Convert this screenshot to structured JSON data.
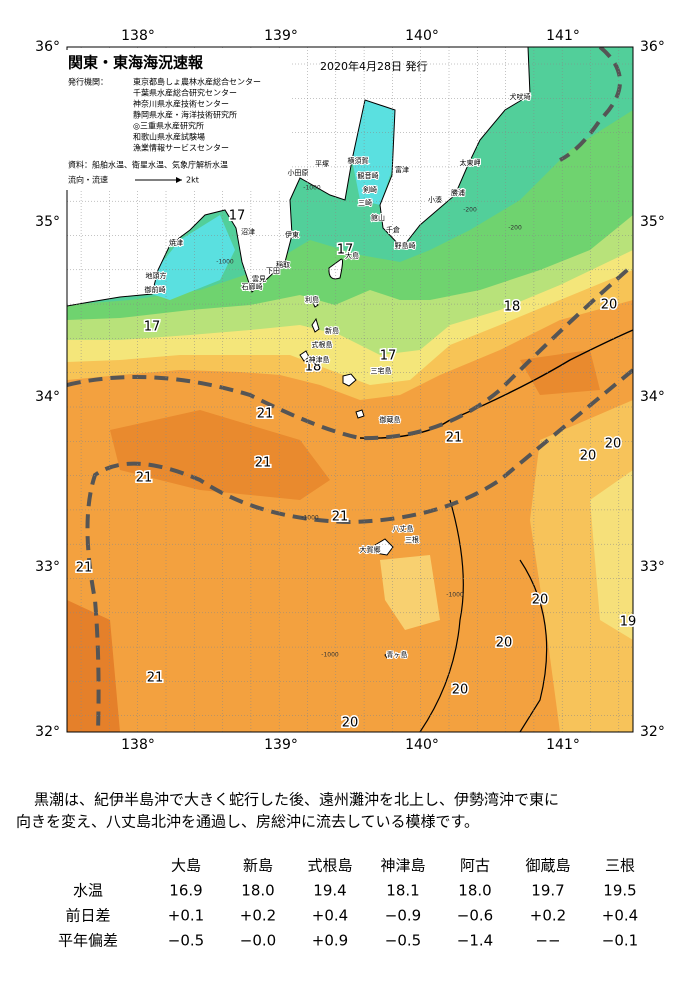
{
  "map": {
    "title": "関東・東海海況速報",
    "issued": "2020年4月28日 発行",
    "agencies_label": "発行機関：",
    "agencies": [
      "東京都島しょ農林水産総合センター",
      "千葉県水産総合研究センター",
      "神奈川県水産技術センター",
      "静岡県水産・海洋技術研究所",
      "◎三重県水産研究所",
      "和歌山県水産試験場",
      "漁業情報サービスセンター"
    ],
    "sources": "資料：船舶水温、衛星水温、気象庁解析水温",
    "legend_label": "流向・流速",
    "legend_speed": "2kt",
    "lon_labels": [
      "138°",
      "139°",
      "140°",
      "141°"
    ],
    "lat_labels": [
      "36°",
      "35°",
      "34°",
      "33°",
      "32°"
    ],
    "contour_labels": [
      "17",
      "17",
      "17",
      "17",
      "18",
      "18",
      "20",
      "21",
      "21",
      "21",
      "21",
      "21",
      "21",
      "21",
      "20",
      "20",
      "20",
      "20",
      "20",
      "20",
      "19"
    ],
    "depth_labels": [
      "-1000",
      "-200",
      "-1000",
      "-200",
      "-1000",
      "-1000",
      "-1000"
    ],
    "places": [
      "犬吠埼",
      "太東岬",
      "勝浦",
      "小湊",
      "館山",
      "千倉",
      "野島崎",
      "富津",
      "横須賀",
      "観音崎",
      "剣崎",
      "平塚",
      "小田原",
      "三崎",
      "伊東",
      "稲取",
      "下田",
      "雲見",
      "石廊崎",
      "沼津",
      "焼津",
      "地頭方",
      "御前崎",
      "大島",
      "利島",
      "新島",
      "式根島",
      "神津島",
      "三宅島",
      "御蔵島",
      "八丈島",
      "三根",
      "大賀郷",
      "青ヶ島"
    ]
  },
  "description": [
    "黒潮は、紀伊半島沖で大きく蛇行した後、遠州灘沖を北上し、伊勢湾沖で東に",
    "向きを変え、八丈島北沖を通過し、房総沖に流去している模様です。"
  ],
  "table": {
    "columns": [
      "大島",
      "新島",
      "式根島",
      "神津島",
      "阿古",
      "御蔵島",
      "三根"
    ],
    "rows": [
      {
        "label": "水温",
        "cells": [
          "16.9",
          "18.0",
          "19.4",
          "18.1",
          "18.0",
          "19.7",
          "19.5"
        ]
      },
      {
        "label": "前日差",
        "cells": [
          "+0.1",
          "+0.2",
          "+0.4",
          "−0.9",
          "−0.6",
          "+0.2",
          "+0.4"
        ]
      },
      {
        "label": "平年偏差",
        "cells": [
          "−0.5",
          "−0.0",
          "+0.9",
          "−0.5",
          "−1.4",
          "−−",
          "−0.1"
        ]
      }
    ]
  }
}
